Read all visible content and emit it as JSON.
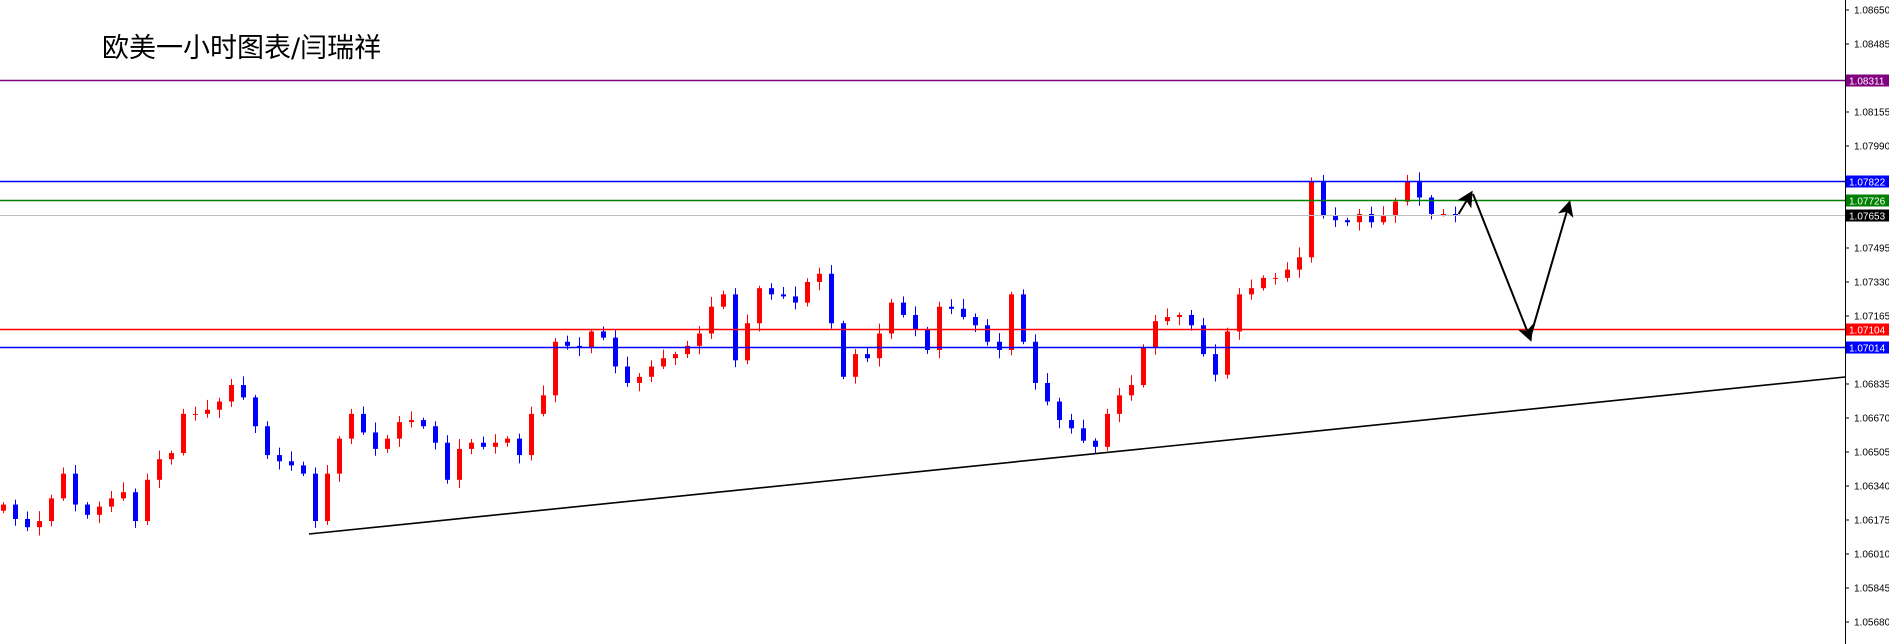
{
  "chart_data": {
    "type": "candlestick",
    "title": "欧美一小时图表/闫瑞祥",
    "ylim": [
      1.0557,
      1.087
    ],
    "y_ticks": [
      "1.08650",
      "1.08485",
      "1.08155",
      "1.07990",
      "1.07495",
      "1.07330",
      "1.07165",
      "1.06835",
      "1.06670",
      "1.06505",
      "1.06340",
      "1.06175",
      "1.06010",
      "1.05845",
      "1.05680"
    ],
    "up_color": "#ff0000",
    "down_color": "#0000ff",
    "closes": [
      1.0625,
      1.0618,
      1.0614,
      1.0617,
      1.0628,
      1.064,
      1.0625,
      1.062,
      1.0624,
      1.0628,
      1.0631,
      1.0617,
      1.0637,
      1.0647,
      1.065,
      1.0669,
      1.0669,
      1.0671,
      1.0675,
      1.0683,
      1.0677,
      1.0663,
      1.0649,
      1.0646,
      1.0644,
      1.064,
      1.0617,
      1.064,
      1.0657,
      1.0669,
      1.066,
      1.0652,
      1.0657,
      1.0665,
      1.0666,
      1.0663,
      1.0655,
      1.0637,
      1.0652,
      1.0655,
      1.0653,
      1.0655,
      1.0657,
      1.0649,
      1.0669,
      1.0678,
      1.0704,
      1.0702,
      1.0701,
      1.0709,
      1.0706,
      1.0692,
      1.0684,
      1.0687,
      1.0692,
      1.0696,
      1.0698,
      1.0702,
      1.0708,
      1.0721,
      1.0727,
      1.0695,
      1.0713,
      1.073,
      1.0727,
      1.0726,
      1.0723,
      1.0733,
      1.0737,
      1.0713,
      1.0687,
      1.0698,
      1.0696,
      1.0708,
      1.0723,
      1.0717,
      1.071,
      1.07,
      1.0721,
      1.072,
      1.0716,
      1.0712,
      1.0704,
      1.07,
      1.0727,
      1.0704,
      1.0684,
      1.0675,
      1.0666,
      1.0662,
      1.0656,
      1.0653,
      1.0669,
      1.0678,
      1.0683,
      1.0701,
      1.0714,
      1.0716,
      1.0717,
      1.0712,
      1.0698,
      1.0688,
      1.0709,
      1.0727,
      1.073,
      1.0735,
      1.0735,
      1.0739,
      1.0745,
      1.0782,
      1.0765,
      1.0763,
      1.0762,
      1.0766,
      1.0762,
      1.0765,
      1.0772,
      1.0782,
      1.0774,
      1.0766,
      1.0766,
      1.07653
    ],
    "levels": [
      {
        "price": "1.08311",
        "color": "#800080"
      },
      {
        "price": "1.07822",
        "color": "#0000ff"
      },
      {
        "price": "1.07726",
        "color": "#008000"
      },
      {
        "price": "1.07653",
        "color": "#c0c0c0",
        "label_bg": "#000000"
      },
      {
        "price": "1.07104",
        "color": "#ff0000"
      },
      {
        "price": "1.07014",
        "color": "#0000ff"
      }
    ],
    "trendline": {
      "from": {
        "bar": 25.5,
        "price": 1.06107
      },
      "to": {
        "bar": 153.5,
        "price": 1.06869
      },
      "color": "#000000"
    },
    "projection_arrows": [
      {
        "from": {
          "bar": 121.3,
          "price": 1.0766
        },
        "to": {
          "bar": 122.3,
          "price": 1.07757
        }
      },
      {
        "from": {
          "bar": 122.5,
          "price": 1.07757
        },
        "to": {
          "bar": 127.25,
          "price": 1.07058
        }
      },
      {
        "from": {
          "bar": 127.25,
          "price": 1.07058
        },
        "to": {
          "bar": 130.5,
          "price": 1.07708
        }
      }
    ]
  }
}
